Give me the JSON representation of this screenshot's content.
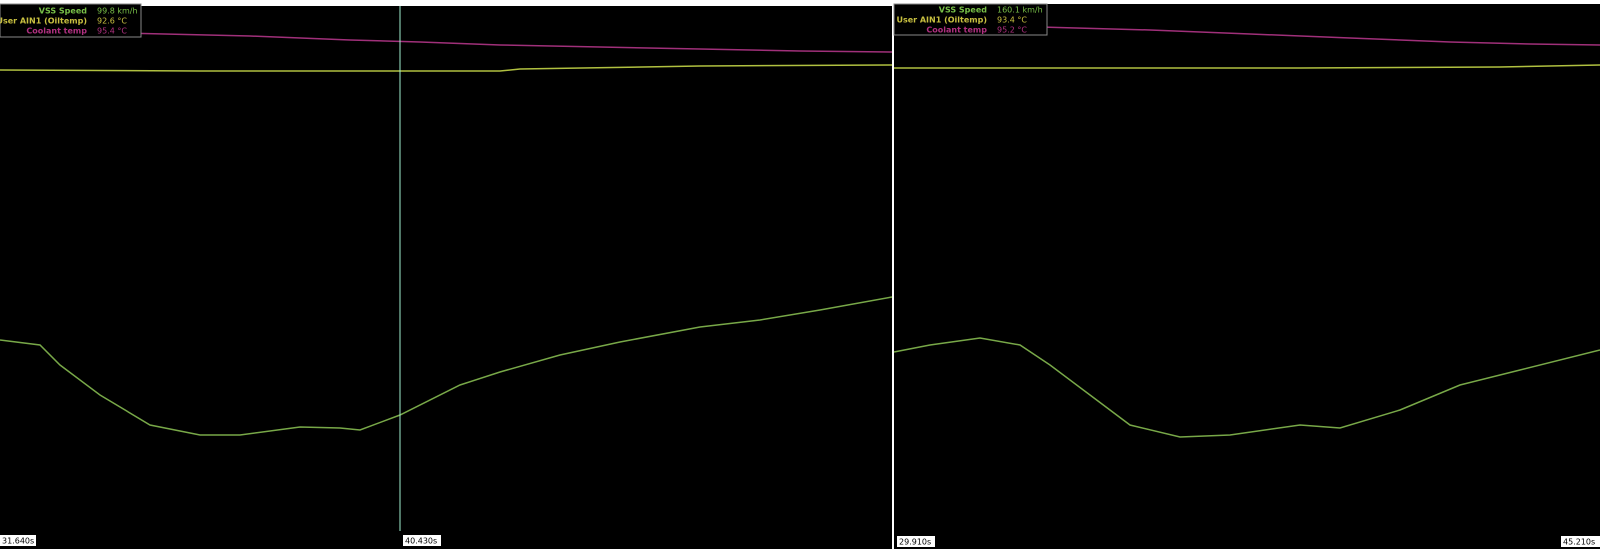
{
  "panels": [
    {
      "legend": [
        {
          "name": "VSS Speed",
          "value": "99.8 km/h"
        },
        {
          "name": "User AIN1 (Oiltemp)",
          "value": "92.6 °C"
        },
        {
          "name": "Coolant temp",
          "value": "95.4 °C"
        }
      ],
      "start_label": "31.640s",
      "cursor_label": "40.430s"
    },
    {
      "legend": [
        {
          "name": "VSS Speed",
          "value": "160.1 km/h"
        },
        {
          "name": "User AIN1 (Oiltemp)",
          "value": "93.4 °C"
        },
        {
          "name": "Coolant temp",
          "value": "95.2 °C"
        }
      ],
      "start_label": "29.910s",
      "end_label": "45.210s"
    }
  ]
}
